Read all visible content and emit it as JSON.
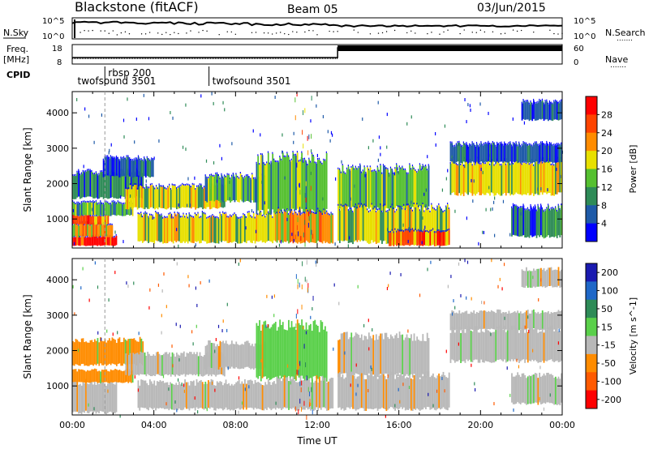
{
  "header": {
    "station": "Blackstone (fitACF)",
    "beam": "Beam 05",
    "date": "03/Jun/2015"
  },
  "left_labels": {
    "nsky": "N.Sky",
    "freq": "Freq.",
    "freq_unit": "[MHz]",
    "cpid": "CPID"
  },
  "right_labels": {
    "nsearch": "N.Search",
    "nave": "Nave",
    "dots": "......."
  },
  "noise_axis": {
    "left_top": "10^5",
    "left_bottom": "10^0",
    "right_top": "10^5",
    "right_bottom": "10^0"
  },
  "freq_axis": {
    "left_top": "18",
    "left_bottom": "8",
    "right_top": "60",
    "right_bottom": "0"
  },
  "cpid_labels": [
    {
      "text": "twofsound 3501",
      "hour": 0.1,
      "row": 1
    },
    {
      "text": "rbsp 200",
      "hour": 1.6,
      "row": 0
    },
    {
      "text": "twofsound 3501",
      "hour": 6.7,
      "row": 1
    }
  ],
  "cpid_dividers": [
    1.6,
    6.7
  ],
  "colors": {
    "power": [
      "#0000ff",
      "#1e5aa8",
      "#2e8b57",
      "#55c030",
      "#e8e000",
      "#ff8c00",
      "#ff4400",
      "#ff0000"
    ],
    "velocity": [
      "#1a1ab0",
      "#1f68c8",
      "#2e8b57",
      "#5ad04a",
      "#b8b8b8",
      "#ff8c00",
      "#ff5a00",
      "#ff0000"
    ]
  },
  "chart_data": [
    {
      "type": "heatmap",
      "panel": "power",
      "ylabel": "Slant Range [km]",
      "x_range_hours": [
        0,
        24
      ],
      "ylim": [
        180,
        4600
      ],
      "yticks": [
        1000,
        2000,
        3000,
        4000
      ],
      "colorbar_label": "Power [dB]",
      "colorbar_ticks": [
        "4",
        "8",
        "12",
        "16",
        "20",
        "24",
        "28"
      ],
      "bands": [
        {
          "t0": 0.0,
          "t1": 2.2,
          "r0": 250,
          "r1": 500,
          "level": 7
        },
        {
          "t0": 0.0,
          "t1": 2.0,
          "r0": 500,
          "r1": 850,
          "level": 5
        },
        {
          "t0": 0.0,
          "t1": 1.8,
          "r0": 850,
          "r1": 1100,
          "level": 6
        },
        {
          "t0": 0.0,
          "t1": 3.0,
          "r0": 1100,
          "r1": 1450,
          "level": 3
        },
        {
          "t0": 0.0,
          "t1": 3.5,
          "r0": 1600,
          "r1": 2300,
          "level": 2
        },
        {
          "t0": 2.6,
          "t1": 7.5,
          "r0": 1300,
          "r1": 1900,
          "level": 4
        },
        {
          "t0": 3.2,
          "t1": 10.0,
          "r0": 350,
          "r1": 1100,
          "level": 4
        },
        {
          "t0": 6.5,
          "t1": 9.5,
          "r0": 1500,
          "r1": 2200,
          "level": 3
        },
        {
          "t0": 9.0,
          "t1": 12.5,
          "r0": 1200,
          "r1": 2700,
          "level": 3
        },
        {
          "t0": 10.0,
          "t1": 12.8,
          "r0": 350,
          "r1": 1200,
          "level": 5
        },
        {
          "t0": 1.5,
          "t1": 4.0,
          "r0": 2200,
          "r1": 2700,
          "level": 1
        },
        {
          "t0": 13.0,
          "t1": 17.5,
          "r0": 1300,
          "r1": 2400,
          "level": 3
        },
        {
          "t0": 13.0,
          "t1": 18.5,
          "r0": 350,
          "r1": 1300,
          "level": 4
        },
        {
          "t0": 15.5,
          "t1": 18.5,
          "r0": 250,
          "r1": 650,
          "level": 6
        },
        {
          "t0": 18.5,
          "t1": 24.0,
          "r0": 1700,
          "r1": 2600,
          "level": 4
        },
        {
          "t0": 18.5,
          "t1": 24.0,
          "r0": 2600,
          "r1": 3100,
          "level": 1
        },
        {
          "t0": 21.5,
          "t1": 24.0,
          "r0": 500,
          "r1": 1300,
          "level": 2
        },
        {
          "t0": 22.0,
          "t1": 24.0,
          "r0": 3800,
          "r1": 4300,
          "level": 1
        }
      ]
    },
    {
      "type": "heatmap",
      "panel": "velocity",
      "ylabel": "Slant Range [km]",
      "xlabel": "Time UT",
      "x_range_hours": [
        0,
        24
      ],
      "ylim": [
        180,
        4600
      ],
      "yticks": [
        1000,
        2000,
        3000,
        4000
      ],
      "xticks": [
        "00:00",
        "04:00",
        "08:00",
        "12:00",
        "16:00",
        "20:00",
        "00:00"
      ],
      "colorbar_label": "Velocity [m s^-1]",
      "colorbar_ticks": [
        "200",
        "100",
        "50",
        "15",
        "-15",
        "-50",
        "-100",
        "-200"
      ],
      "bands": [
        {
          "t0": 0.0,
          "t1": 2.2,
          "r0": 250,
          "r1": 1100,
          "level": 4
        },
        {
          "t0": 0.0,
          "t1": 3.0,
          "r0": 1100,
          "r1": 1450,
          "level": 5
        },
        {
          "t0": 0.0,
          "t1": 3.5,
          "r0": 1600,
          "r1": 2300,
          "level": 5
        },
        {
          "t0": 2.6,
          "t1": 7.5,
          "r0": 1300,
          "r1": 1900,
          "level": 4
        },
        {
          "t0": 3.2,
          "t1": 10.0,
          "r0": 350,
          "r1": 1100,
          "level": 4
        },
        {
          "t0": 6.5,
          "t1": 9.5,
          "r0": 1500,
          "r1": 2200,
          "level": 4
        },
        {
          "t0": 9.0,
          "t1": 12.5,
          "r0": 1200,
          "r1": 2700,
          "level": 3
        },
        {
          "t0": 10.0,
          "t1": 12.8,
          "r0": 350,
          "r1": 1200,
          "level": 4
        },
        {
          "t0": 13.0,
          "t1": 17.5,
          "r0": 1300,
          "r1": 2400,
          "level": 4
        },
        {
          "t0": 13.0,
          "t1": 18.5,
          "r0": 350,
          "r1": 1300,
          "level": 4
        },
        {
          "t0": 18.5,
          "t1": 24.0,
          "r0": 1700,
          "r1": 2600,
          "level": 4
        },
        {
          "t0": 18.5,
          "t1": 24.0,
          "r0": 2600,
          "r1": 3100,
          "level": 4
        },
        {
          "t0": 21.5,
          "t1": 24.0,
          "r0": 500,
          "r1": 1300,
          "level": 4
        },
        {
          "t0": 22.0,
          "t1": 24.0,
          "r0": 3800,
          "r1": 4300,
          "level": 4
        }
      ]
    }
  ]
}
